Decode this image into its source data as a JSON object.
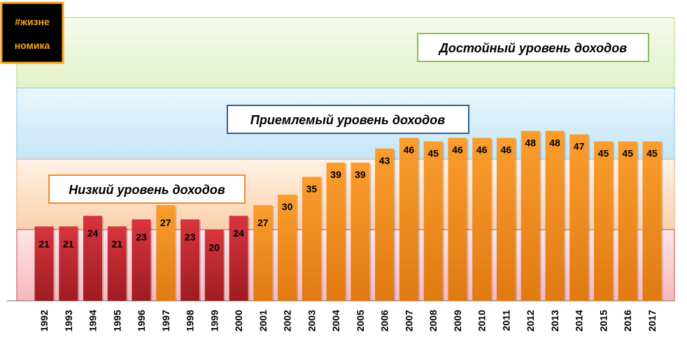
{
  "logo": {
    "line1": "#жизне",
    "line2": "номика"
  },
  "colors": {
    "band_high": "#eef7dc",
    "band_high_border": "#b6d680",
    "band_mid": "#d8eef8",
    "band_mid_border": "#7fc3e4",
    "band_low": "#fbe0c8",
    "band_low_border": "#e7a870",
    "band_bottom": "#fbd3d6",
    "band_bottom_border": "#c94a55",
    "bar_red": "#c1272d",
    "bar_orange": "#f7931e",
    "title_high_border": "#8dbe4f",
    "title_mid_border": "#2e5f9e",
    "title_low_border": "#f08c2a"
  },
  "chart_data": {
    "type": "bar",
    "title": "",
    "xlabel": "",
    "ylabel": "",
    "ylim": [
      0,
      80
    ],
    "categories": [
      "1992",
      "1993",
      "1994",
      "1995",
      "1996",
      "1997",
      "1998",
      "1999",
      "2000",
      "2001",
      "2002",
      "2003",
      "2004",
      "2005",
      "2006",
      "2007",
      "2008",
      "2009",
      "2010",
      "2011",
      "2012",
      "2013",
      "2014",
      "2015",
      "2016",
      "2017"
    ],
    "values": [
      21,
      21,
      24,
      21,
      23,
      27,
      23,
      20,
      24,
      27,
      30,
      35,
      39,
      39,
      43,
      46,
      45,
      46,
      46,
      46,
      48,
      48,
      47,
      45,
      45,
      45
    ],
    "bar_color_groups": [
      "red",
      "red",
      "red",
      "red",
      "red",
      "orange",
      "red",
      "red",
      "red",
      "orange",
      "orange",
      "orange",
      "orange",
      "orange",
      "orange",
      "orange",
      "orange",
      "orange",
      "orange",
      "orange",
      "orange",
      "orange",
      "orange",
      "orange",
      "orange",
      "orange"
    ],
    "bands": [
      {
        "name": "Достойный уровень доходов",
        "from": 60,
        "to": 80
      },
      {
        "name": "Приемлемый уровень доходов",
        "from": 40,
        "to": 60
      },
      {
        "name": "Низкий уровень доходов",
        "from": 20,
        "to": 40
      },
      {
        "name": "",
        "from": 0,
        "to": 20
      }
    ]
  }
}
